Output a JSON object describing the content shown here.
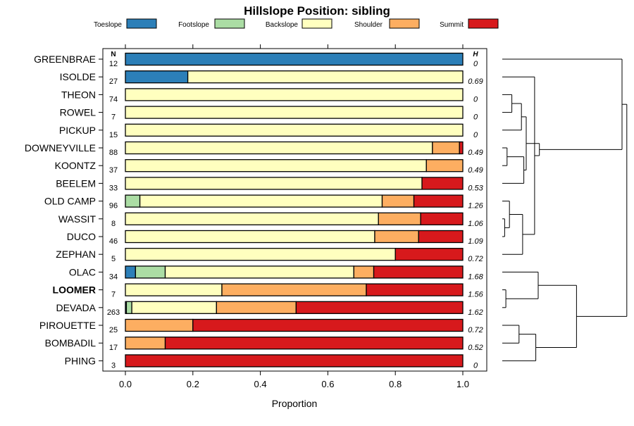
{
  "chart_data": {
    "type": "bar",
    "subtype": "stacked-horizontal-proportion",
    "title": "Hillslope Position: sibling",
    "xlabel": "Proportion",
    "ylabel": "",
    "xlim": [
      0,
      1
    ],
    "x_ticks": [
      "0.0",
      "0.2",
      "0.4",
      "0.6",
      "0.8",
      "1.0"
    ],
    "n_header": "N",
    "h_header": "H",
    "legend_position": "top",
    "highlighted_category": "LOOMER",
    "series": [
      {
        "name": "Toeslope",
        "color": "#2c7fb8",
        "values": [
          1.0,
          0.185,
          0,
          0,
          0,
          0,
          0,
          0,
          0,
          0,
          0,
          0,
          0.03,
          0,
          0.003,
          0,
          0,
          0
        ]
      },
      {
        "name": "Footslope",
        "color": "#abdda4",
        "values": [
          0,
          0,
          0,
          0,
          0,
          0,
          0,
          0,
          0.043,
          0,
          0,
          0,
          0.088,
          0,
          0.016,
          0,
          0,
          0
        ]
      },
      {
        "name": "Backslope",
        "color": "#ffffbf",
        "values": [
          0,
          0.815,
          1.0,
          1.0,
          1.0,
          0.91,
          0.892,
          0.879,
          0.718,
          0.75,
          0.739,
          0.8,
          0.559,
          0.286,
          0.251,
          0,
          0,
          0
        ]
      },
      {
        "name": "Shoulder",
        "color": "#fdae61",
        "values": [
          0,
          0,
          0,
          0,
          0,
          0.08,
          0.108,
          0,
          0.094,
          0.125,
          0.13,
          0,
          0.059,
          0.428,
          0.236,
          0.2,
          0.118,
          0
        ]
      },
      {
        "name": "Summit",
        "color": "#d7191c",
        "values": [
          0,
          0,
          0,
          0,
          0,
          0.01,
          0,
          0.121,
          0.145,
          0.125,
          0.131,
          0.2,
          0.264,
          0.286,
          0.494,
          0.8,
          0.882,
          1.0
        ]
      }
    ],
    "categories": [
      "GREENBRAE",
      "ISOLDE",
      "THEON",
      "ROWEL",
      "PICKUP",
      "DOWNEYVILLE",
      "KOONTZ",
      "BEELEM",
      "OLD CAMP",
      "WASSIT",
      "DUCO",
      "ZEPHAN",
      "OLAC",
      "LOOMER",
      "DEVADA",
      "PIROUETTE",
      "BOMBADIL",
      "PHING"
    ],
    "n_values": [
      "12",
      "27",
      "74",
      "7",
      "15",
      "88",
      "37",
      "33",
      "96",
      "8",
      "46",
      "5",
      "34",
      "7",
      "263",
      "25",
      "17",
      "3"
    ],
    "h_values": [
      "0",
      "0.69",
      "0",
      "0",
      "0",
      "0.49",
      "0.49",
      "0.53",
      "1.26",
      "1.06",
      "1.09",
      "0.72",
      "1.68",
      "1.56",
      "1.62",
      "0.72",
      "0.52",
      "0"
    ],
    "dendrogram": "hierarchical clustering of category rows, drawn to the right of the panel"
  }
}
